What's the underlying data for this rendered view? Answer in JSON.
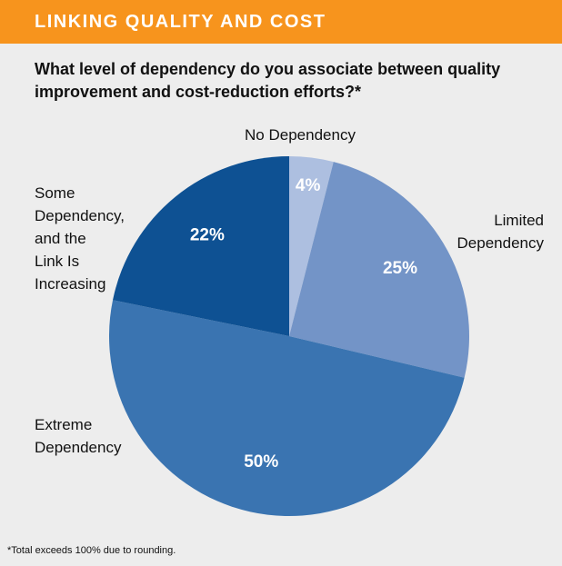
{
  "chart_data": {
    "type": "pie",
    "title": "LINKING QUALITY AND COST",
    "subtitle": "What level of dependency do you associate between quality improvement and cost-reduction efforts?*",
    "categories": [
      "No Dependency",
      "Limited\nDependency",
      "Some\nDependency,\nand the\nLink Is\nIncreasing",
      "Extreme\nDependency"
    ],
    "values": [
      4,
      25,
      50,
      22
    ],
    "value_labels": [
      "4%",
      "25%",
      "50%",
      "22%"
    ],
    "colors": [
      "#adbfe0",
      "#7394c7",
      "#3a74b1",
      "#0e5193"
    ],
    "footnote": "*Total exceeds 100% due to rounding."
  }
}
